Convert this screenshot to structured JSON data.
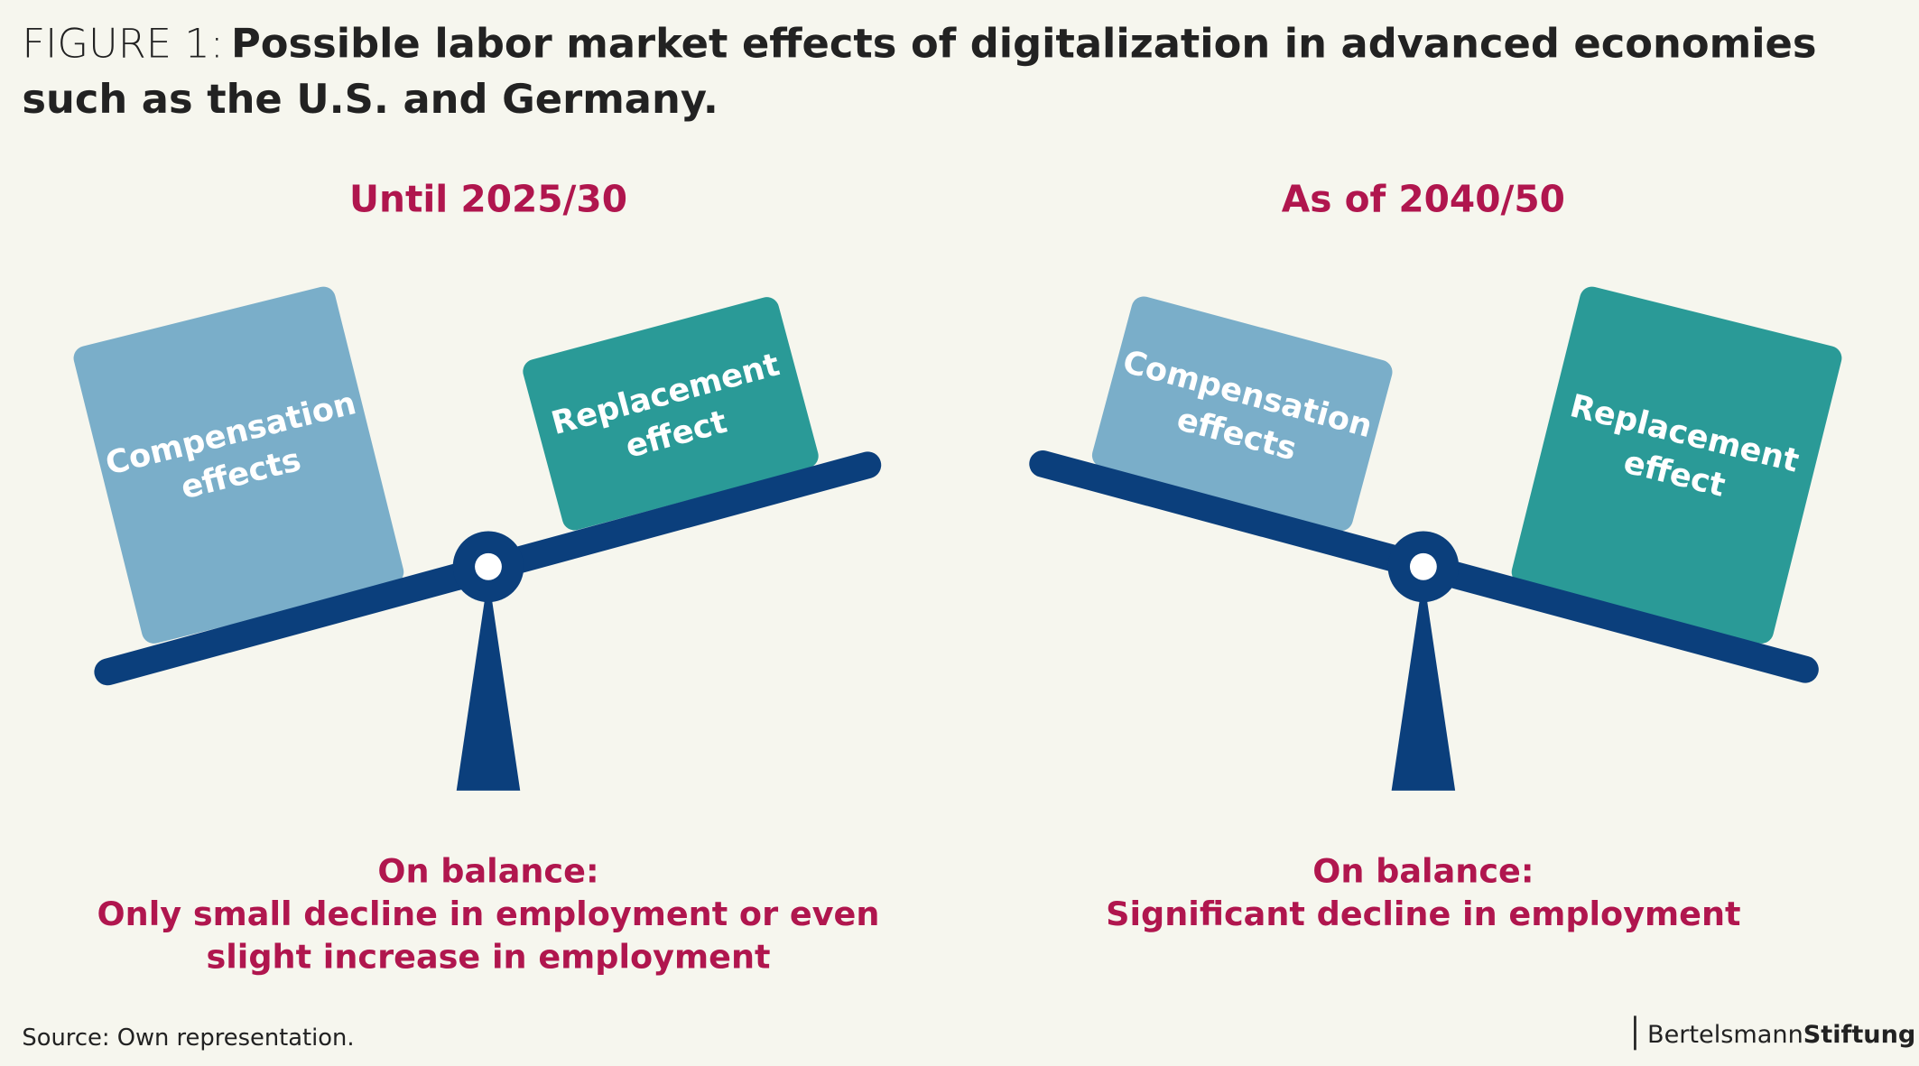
{
  "header": {
    "figure_label": "FIGURE 1:",
    "title_lines": [
      "Possible labor market effects of digitalization in advanced economies",
      "such as the U.S. and Germany."
    ]
  },
  "panels": [
    {
      "period": "Until 2025/30",
      "left_box": [
        "Compensation",
        "effects"
      ],
      "right_box": [
        "Replacement",
        "effect"
      ],
      "balance_lines": [
        "On balance:",
        "Only small decline in employment or even",
        "slight increase in employment"
      ]
    },
    {
      "period": "As of 2040/50",
      "left_box": [
        "Compensation",
        "effects"
      ],
      "right_box": [
        "Replacement",
        "effect"
      ],
      "balance_lines": [
        "On balance:",
        "Significant decline in employment"
      ]
    }
  ],
  "footer": {
    "source": "Source: Own representation.",
    "logo_regular": "Bertelsmann",
    "logo_bold": "Stiftung"
  }
}
